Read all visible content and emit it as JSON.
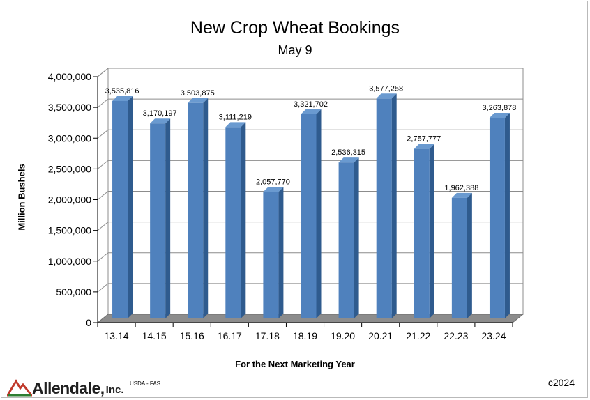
{
  "chart_data": {
    "type": "bar",
    "title": "New Crop Wheat Bookings",
    "subtitle": "May 9",
    "xlabel": "For the Next Marketing Year",
    "ylabel": "Million Bushels",
    "categories": [
      "13.14",
      "14.15",
      "15.16",
      "16.17",
      "17.18",
      "18.19",
      "19.20",
      "20.21",
      "21.22",
      "22.23",
      "23.24"
    ],
    "values": [
      3535816,
      3170197,
      3503875,
      3111219,
      2057770,
      3321702,
      2536315,
      3577258,
      2757777,
      1962388,
      3263878
    ],
    "value_labels": [
      "3,535,816",
      "3,170,197",
      "3,503,875",
      "3,111,219",
      "2,057,770",
      "3,321,702",
      "2,536,315",
      "3,577,258",
      "2,757,777",
      "1,962,388",
      "3,263,878"
    ],
    "ylim": [
      0,
      4000000
    ],
    "yticks": [
      0,
      500000,
      1000000,
      1500000,
      2000000,
      2500000,
      3000000,
      3500000,
      4000000
    ],
    "ytick_labels": [
      "0",
      "500,000",
      "1,000,000",
      "1,500,000",
      "2,000,000",
      "2,500,000",
      "3,000,000",
      "3,500,000",
      "4,000,000"
    ],
    "grid": true,
    "bar_color": "#4f81bd",
    "bar_side_color": "#2f5b8e",
    "floor_color": "#8c8c8c"
  },
  "footer": {
    "brand": "Allendale,",
    "brand_suffix": "Inc.",
    "source": "USDA - FAS",
    "copyright": "c2024"
  },
  "brand_colors": {
    "logo_red": "#c0392b",
    "logo_green": "#2e7d32"
  }
}
